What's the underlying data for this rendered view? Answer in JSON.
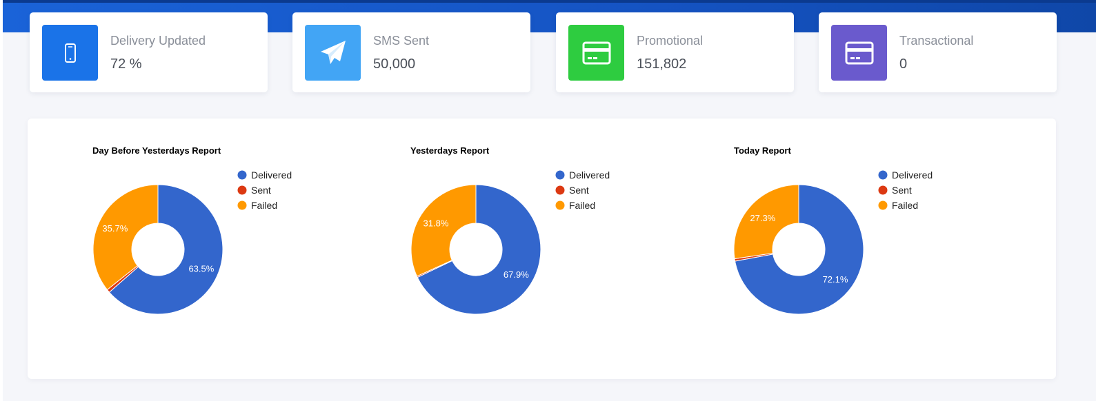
{
  "cards": [
    {
      "title": "Delivery Updated",
      "value": "72 %",
      "icon": "mobile-phone-icon",
      "color": "#1a73e8"
    },
    {
      "title": "SMS Sent",
      "value": "50,000",
      "icon": "paper-plane-icon",
      "color": "#42a5f5"
    },
    {
      "title": "Promotional",
      "value": "151,802",
      "icon": "credit-card-icon",
      "color": "#2ecc40"
    },
    {
      "title": "Transactional",
      "value": "0",
      "icon": "credit-card-icon",
      "color": "#6a5acd"
    }
  ],
  "colors": {
    "delivered": "#3366cc",
    "sent": "#dc3912",
    "failed": "#ff9900"
  },
  "chart_data": [
    {
      "type": "pie",
      "title": "Day Before Yesterdays Report",
      "categories": [
        "Delivered",
        "Sent",
        "Failed"
      ],
      "values": [
        63.5,
        0.8,
        35.7
      ],
      "labels": [
        "63.5%",
        "",
        "35.7%"
      ],
      "legend": "right"
    },
    {
      "type": "pie",
      "title": "Yesterdays Report",
      "categories": [
        "Delivered",
        "Sent",
        "Failed"
      ],
      "values": [
        67.9,
        0.3,
        31.8
      ],
      "labels": [
        "67.9%",
        "",
        "31.8%"
      ],
      "legend": "right"
    },
    {
      "type": "pie",
      "title": "Today Report",
      "categories": [
        "Delivered",
        "Sent",
        "Failed"
      ],
      "values": [
        72.1,
        0.6,
        27.3
      ],
      "labels": [
        "72.1%",
        "",
        "27.3%"
      ],
      "legend": "right"
    }
  ]
}
